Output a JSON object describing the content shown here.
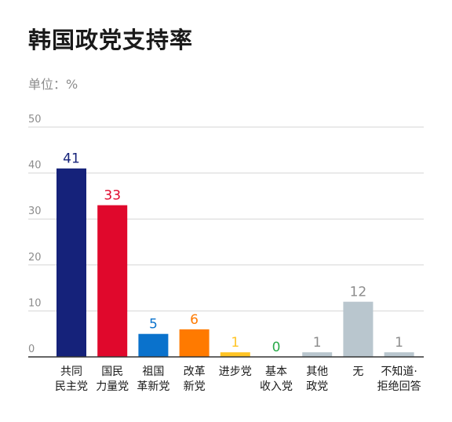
{
  "title": "韩国政党支持率",
  "unit_label": "单位：%",
  "chart_data": {
    "type": "bar",
    "title": "韩国政党支持率",
    "ylabel": "单位：%",
    "xlabel": "",
    "ylim": [
      0,
      50
    ],
    "yticks": [
      0,
      10,
      20,
      30,
      40,
      50
    ],
    "grid": true,
    "categories": [
      [
        "共同",
        "民主党"
      ],
      [
        "国民",
        "力量党"
      ],
      [
        "祖国",
        "革新党"
      ],
      [
        "改革",
        "新党"
      ],
      [
        "进步党"
      ],
      [
        "基本",
        "收入党"
      ],
      [
        "其他",
        "政党"
      ],
      [
        "无"
      ],
      [
        "不知道·",
        "拒绝回答"
      ]
    ],
    "values": [
      41,
      33,
      5,
      6,
      1,
      0,
      1,
      12,
      1
    ],
    "bar_colors": [
      "#15227a",
      "#e0082c",
      "#0a72cc",
      "#ff7a00",
      "#ffc425",
      "#2aaa4a",
      "#b9c6ce",
      "#b9c6ce",
      "#b9c6ce"
    ],
    "label_colors": [
      "#15227a",
      "#e0082c",
      "#0a72cc",
      "#ff7a00",
      "#ffc425",
      "#2aaa4a",
      "#8c8c8c",
      "#8c8c8c",
      "#8c8c8c"
    ]
  }
}
